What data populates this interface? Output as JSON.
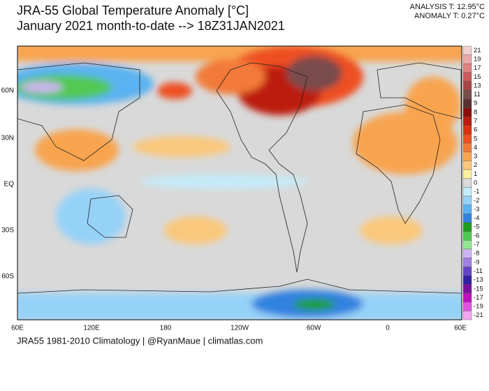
{
  "header": {
    "title_line1": "JRA-55 Global Temperature Anomaly [°C]",
    "title_line2": "January 2021 month-to-date --> 18Z31JAN2021",
    "analysis": "ANALYSIS T: 12.95°C",
    "anomaly": "ANOMALY T: 0.27°C"
  },
  "map": {
    "lat_labels": [
      "60N",
      "30N",
      "EQ",
      "30S",
      "60S"
    ],
    "lon_labels": [
      "60E",
      "120E",
      "180",
      "120W",
      "60W",
      "0",
      "60E"
    ]
  },
  "colorbar": {
    "labels": [
      "21",
      "19",
      "17",
      "15",
      "13",
      "11",
      "9",
      "8",
      "7",
      "6",
      "5",
      "4",
      "3",
      "2",
      "1",
      "0",
      "-1",
      "-2",
      "-3",
      "-4",
      "-5",
      "-6",
      "-7",
      "-8",
      "-9",
      "-11",
      "-13",
      "-15",
      "-17",
      "-19",
      "-21"
    ],
    "colors": [
      "#f4d0d0",
      "#eaa8a8",
      "#e08080",
      "#cc5a5a",
      "#a84646",
      "#7a4c4c",
      "#5a3030",
      "#8c0c0c",
      "#bc1c10",
      "#dc3010",
      "#ee5020",
      "#f27a38",
      "#f8a450",
      "#fac87c",
      "#fff0a0",
      "#d9d9d9",
      "#c4ecfa",
      "#96d2f8",
      "#5ab2f0",
      "#3282e0",
      "#1e9e1e",
      "#52c852",
      "#92e892",
      "#ccb4f2",
      "#a080e0",
      "#6444c4",
      "#3420a4",
      "#7c10a0",
      "#c010c0",
      "#e052e0",
      "#f2a6f2"
    ]
  },
  "footer": "JRA55 1981-2010 Climatology | @RyanMaue | climatlas.com"
}
